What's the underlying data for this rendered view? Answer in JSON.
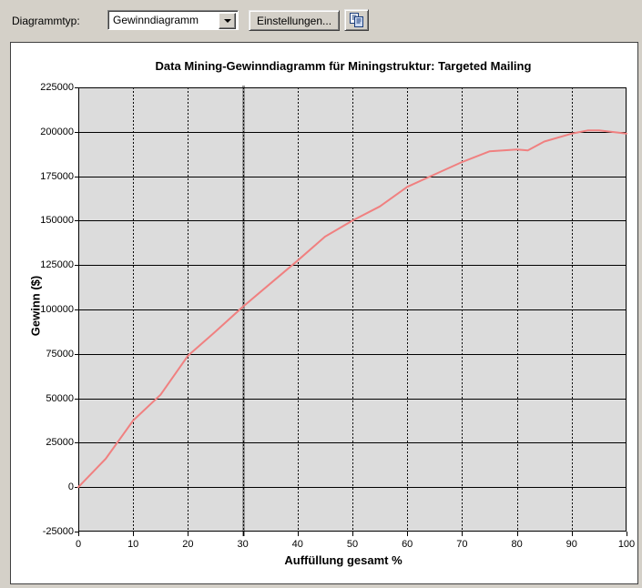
{
  "toolbar": {
    "label": "Diagrammtyp:",
    "diagram_type_value": "Gewinndiagramm",
    "settings_label": "Einstellungen...",
    "icons": [
      "chevron-down-icon",
      "copy-icon"
    ]
  },
  "colors": {
    "window_bg": "#d4d0c8",
    "chart_bg": "#ffffff",
    "plot_bg": "#dcdcdc",
    "grid": "#000000",
    "marker_line": "#999999",
    "series_line": "#f08080"
  },
  "chart_data": {
    "type": "line",
    "title": "Data Mining-Gewinndiagramm für Miningstruktur: Targeted Mailing",
    "xlabel": "Auffüllung gesamt %",
    "ylabel": "Gewinn  ($)",
    "xlim": [
      0,
      100
    ],
    "ylim": [
      -25000,
      225000
    ],
    "x_ticks": [
      0,
      10,
      20,
      30,
      40,
      50,
      60,
      70,
      80,
      90,
      100
    ],
    "y_ticks": [
      225000,
      200000,
      175000,
      150000,
      125000,
      100000,
      75000,
      50000,
      25000,
      0,
      -25000
    ],
    "grid": {
      "horizontal": "solid",
      "vertical": "dashed"
    },
    "legend": false,
    "marker_line_x": 30,
    "series": [
      {
        "name": "Gewinn",
        "color": "#f08080",
        "x": [
          0,
          5,
          10,
          15,
          20,
          25,
          30,
          35,
          40,
          45,
          50,
          55,
          60,
          65,
          70,
          75,
          80,
          82,
          85,
          90,
          93,
          95,
          100
        ],
        "y": [
          0,
          16000,
          37500,
          52000,
          74000,
          87500,
          101500,
          114500,
          127500,
          141000,
          150000,
          158000,
          169000,
          176000,
          183000,
          189000,
          190000,
          189500,
          194500,
          199000,
          200800,
          200800,
          199000
        ]
      }
    ]
  }
}
